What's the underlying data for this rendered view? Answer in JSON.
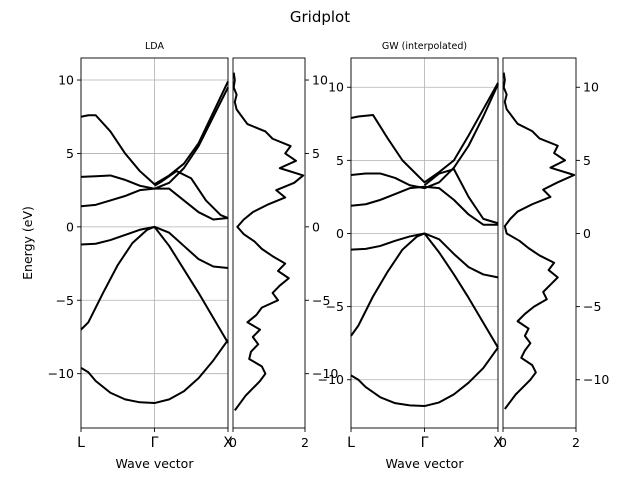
{
  "figure": {
    "title": "Gridplot"
  },
  "chart_data": [
    {
      "type": "line",
      "title": "LDA",
      "xlabel": "Wave vector",
      "ylabel": "Energy (eV)",
      "xticks": [
        "L",
        "Γ",
        "X"
      ],
      "kpoints": [
        0,
        1,
        2
      ],
      "ylim": [
        -13.7,
        11.5
      ],
      "yticks": [
        -10,
        -5,
        0,
        5,
        10
      ],
      "grid": true,
      "line_color": "#000000",
      "series": [
        {
          "x": [
            0,
            0.1,
            0.2,
            0.4,
            0.6,
            0.8,
            1.0,
            1.2,
            1.4,
            1.6,
            1.8,
            2.0
          ],
          "values": [
            -9.6,
            -9.9,
            -10.5,
            -11.3,
            -11.75,
            -11.95,
            -12.0,
            -11.75,
            -11.2,
            -10.3,
            -9.1,
            -7.7
          ]
        },
        {
          "x": [
            0,
            0.1,
            0.3,
            0.5,
            0.7,
            0.9,
            1.0,
            1.2,
            1.4,
            1.6,
            1.8,
            2.0
          ],
          "values": [
            -7.0,
            -6.5,
            -4.5,
            -2.6,
            -1.1,
            -0.2,
            0,
            -1.3,
            -2.9,
            -4.5,
            -6.2,
            -7.9
          ]
        },
        {
          "x": [
            0,
            0.2,
            0.4,
            0.6,
            0.8,
            1.0,
            1.2,
            1.4,
            1.6,
            1.8,
            2.0
          ],
          "values": [
            -1.2,
            -1.15,
            -0.9,
            -0.55,
            -0.2,
            0,
            -0.4,
            -1.3,
            -2.2,
            -2.7,
            -2.8
          ]
        },
        {
          "x": [
            0,
            0.2,
            0.4,
            0.6,
            0.8,
            1.0,
            1.2,
            1.4,
            1.6,
            1.8,
            2.0
          ],
          "values": [
            1.4,
            1.5,
            1.8,
            2.1,
            2.5,
            2.6,
            2.6,
            1.8,
            1.0,
            0.5,
            0.6
          ]
        },
        {
          "x": [
            0,
            0.2,
            0.4,
            0.6,
            0.8,
            1.0,
            1.2,
            1.4,
            1.6,
            1.8,
            2.0
          ],
          "values": [
            3.4,
            3.45,
            3.5,
            3.2,
            2.8,
            2.6,
            3.0,
            4.0,
            5.5,
            7.5,
            9.5
          ]
        },
        {
          "x": [
            0,
            0.1,
            0.2,
            0.4,
            0.6,
            0.8,
            1.0,
            1.2,
            1.4,
            1.6,
            1.8,
            2.0
          ],
          "values": [
            7.5,
            7.6,
            7.6,
            6.5,
            5.0,
            3.8,
            2.9,
            3.5,
            4.3,
            5.7,
            7.8,
            9.9
          ]
        },
        {
          "x": [
            1.0,
            1.1,
            1.3,
            1.5,
            1.7,
            1.9,
            2.0
          ],
          "values": [
            2.8,
            3.1,
            3.8,
            3.3,
            1.8,
            0.8,
            0.6
          ]
        }
      ]
    },
    {
      "type": "line",
      "title": "",
      "xlabel": "",
      "ylabel": "",
      "orientation": "vertical",
      "xlim": [
        0,
        2
      ],
      "xticks": [
        0,
        2
      ],
      "ylim": [
        -13.7,
        11.5
      ],
      "yticks": [
        -10,
        -5,
        0,
        5,
        10
      ],
      "ytick_side": "right",
      "grid": false,
      "line_color": "#000000",
      "energy": [
        -12.5,
        -12.0,
        -11.5,
        -11.0,
        -10.5,
        -10.0,
        -9.5,
        -9.0,
        -8.5,
        -8.0,
        -7.5,
        -7.0,
        -6.5,
        -6.0,
        -5.5,
        -5.0,
        -4.5,
        -4.0,
        -3.5,
        -3.0,
        -2.5,
        -2.0,
        -1.5,
        -1.0,
        -0.5,
        0.0,
        0.5,
        1.0,
        1.5,
        2.0,
        2.5,
        3.0,
        3.5,
        4.0,
        4.5,
        5.0,
        5.5,
        6.0,
        6.5,
        7.0,
        7.5,
        8.0,
        8.5,
        9.0,
        9.5,
        10.0,
        10.5
      ],
      "values": [
        0.05,
        0.2,
        0.35,
        0.55,
        0.75,
        0.9,
        0.8,
        0.45,
        0.5,
        0.7,
        0.55,
        0.75,
        0.4,
        0.65,
        0.8,
        1.25,
        1.1,
        1.3,
        1.55,
        1.25,
        1.45,
        1.1,
        0.8,
        0.6,
        0.3,
        0.12,
        0.3,
        0.55,
        0.95,
        1.45,
        1.2,
        1.7,
        1.95,
        1.3,
        1.75,
        1.45,
        1.6,
        1.1,
        0.9,
        0.4,
        0.25,
        0.1,
        0.05,
        0.1,
        0.02,
        0.05,
        0.02
      ]
    },
    {
      "type": "line",
      "title": "GW (interpolated)",
      "xlabel": "Wave vector",
      "ylabel": "",
      "xticks": [
        "L",
        "Γ",
        "X"
      ],
      "kpoints": [
        0,
        1,
        2
      ],
      "ylim": [
        -13.3,
        12.0
      ],
      "yticks": [
        -10,
        -5,
        0,
        5,
        10
      ],
      "grid": true,
      "line_color": "#000000",
      "series": [
        {
          "x": [
            0,
            0.1,
            0.2,
            0.4,
            0.6,
            0.8,
            1.0,
            1.2,
            1.4,
            1.6,
            1.8,
            2.0
          ],
          "values": [
            -9.7,
            -10.0,
            -10.5,
            -11.2,
            -11.6,
            -11.75,
            -11.8,
            -11.55,
            -11.0,
            -10.2,
            -9.2,
            -7.8
          ]
        },
        {
          "x": [
            0,
            0.1,
            0.3,
            0.5,
            0.7,
            0.9,
            1.0,
            1.2,
            1.4,
            1.6,
            1.8,
            2.0
          ],
          "values": [
            -7.0,
            -6.3,
            -4.3,
            -2.6,
            -1.1,
            -0.2,
            0,
            -1.3,
            -2.8,
            -4.4,
            -6.1,
            -7.8
          ]
        },
        {
          "x": [
            0,
            0.2,
            0.4,
            0.6,
            0.8,
            1.0,
            1.2,
            1.4,
            1.6,
            1.8,
            2.0
          ],
          "values": [
            -1.1,
            -1.05,
            -0.85,
            -0.5,
            -0.2,
            0,
            -0.4,
            -1.4,
            -2.3,
            -2.8,
            -3.0
          ]
        },
        {
          "x": [
            0,
            0.2,
            0.4,
            0.6,
            0.8,
            1.0,
            1.2,
            1.4,
            1.6,
            1.8,
            2.0
          ],
          "values": [
            1.9,
            2.0,
            2.3,
            2.7,
            3.1,
            3.2,
            3.1,
            2.3,
            1.3,
            0.6,
            0.6
          ]
        },
        {
          "x": [
            0,
            0.2,
            0.4,
            0.6,
            0.8,
            1.0,
            1.2,
            1.4,
            1.6,
            1.8,
            2.0
          ],
          "values": [
            4.0,
            4.1,
            4.1,
            3.8,
            3.3,
            3.1,
            3.5,
            4.5,
            6.0,
            8.0,
            10.2
          ]
        },
        {
          "x": [
            0,
            0.1,
            0.3,
            0.5,
            0.7,
            0.9,
            1.0,
            1.2,
            1.4,
            1.6,
            1.8,
            2.0
          ],
          "values": [
            7.9,
            8.0,
            8.1,
            6.5,
            5.0,
            4.0,
            3.5,
            4.2,
            5.0,
            6.7,
            8.5,
            10.3
          ]
        },
        {
          "x": [
            1.0,
            1.2,
            1.4,
            1.6,
            1.8,
            2.0
          ],
          "values": [
            3.3,
            4.1,
            4.4,
            2.5,
            1.0,
            0.7
          ]
        }
      ]
    },
    {
      "type": "line",
      "title": "",
      "xlabel": "",
      "ylabel": "",
      "orientation": "vertical",
      "xlim": [
        0,
        2
      ],
      "xticks": [
        0,
        2
      ],
      "ylim": [
        -13.3,
        12.0
      ],
      "yticks": [
        -10,
        -5,
        0,
        5,
        10
      ],
      "ytick_side": "right",
      "grid": false,
      "line_color": "#000000",
      "energy": [
        -12.0,
        -11.5,
        -11.0,
        -10.5,
        -10.0,
        -9.5,
        -9.0,
        -8.5,
        -8.0,
        -7.5,
        -7.0,
        -6.5,
        -6.0,
        -5.5,
        -5.0,
        -4.5,
        -4.0,
        -3.5,
        -3.0,
        -2.5,
        -2.0,
        -1.5,
        -1.0,
        -0.5,
        0.0,
        0.5,
        1.0,
        1.5,
        2.0,
        2.5,
        3.0,
        3.5,
        4.0,
        4.5,
        5.0,
        5.5,
        6.0,
        6.5,
        7.0,
        7.5,
        8.0,
        8.5,
        9.0,
        9.5,
        10.0,
        10.5,
        11.0
      ],
      "values": [
        0.05,
        0.2,
        0.35,
        0.55,
        0.75,
        0.9,
        0.8,
        0.5,
        0.6,
        0.75,
        0.6,
        0.7,
        0.4,
        0.6,
        0.85,
        1.2,
        1.1,
        1.3,
        1.5,
        1.25,
        1.4,
        1.0,
        0.7,
        0.45,
        0.1,
        0.05,
        0.2,
        0.4,
        0.8,
        1.3,
        1.1,
        1.5,
        1.95,
        1.3,
        1.7,
        1.4,
        1.5,
        1.0,
        0.8,
        0.4,
        0.25,
        0.1,
        0.05,
        0.1,
        0.02,
        0.05,
        0.02
      ]
    }
  ]
}
